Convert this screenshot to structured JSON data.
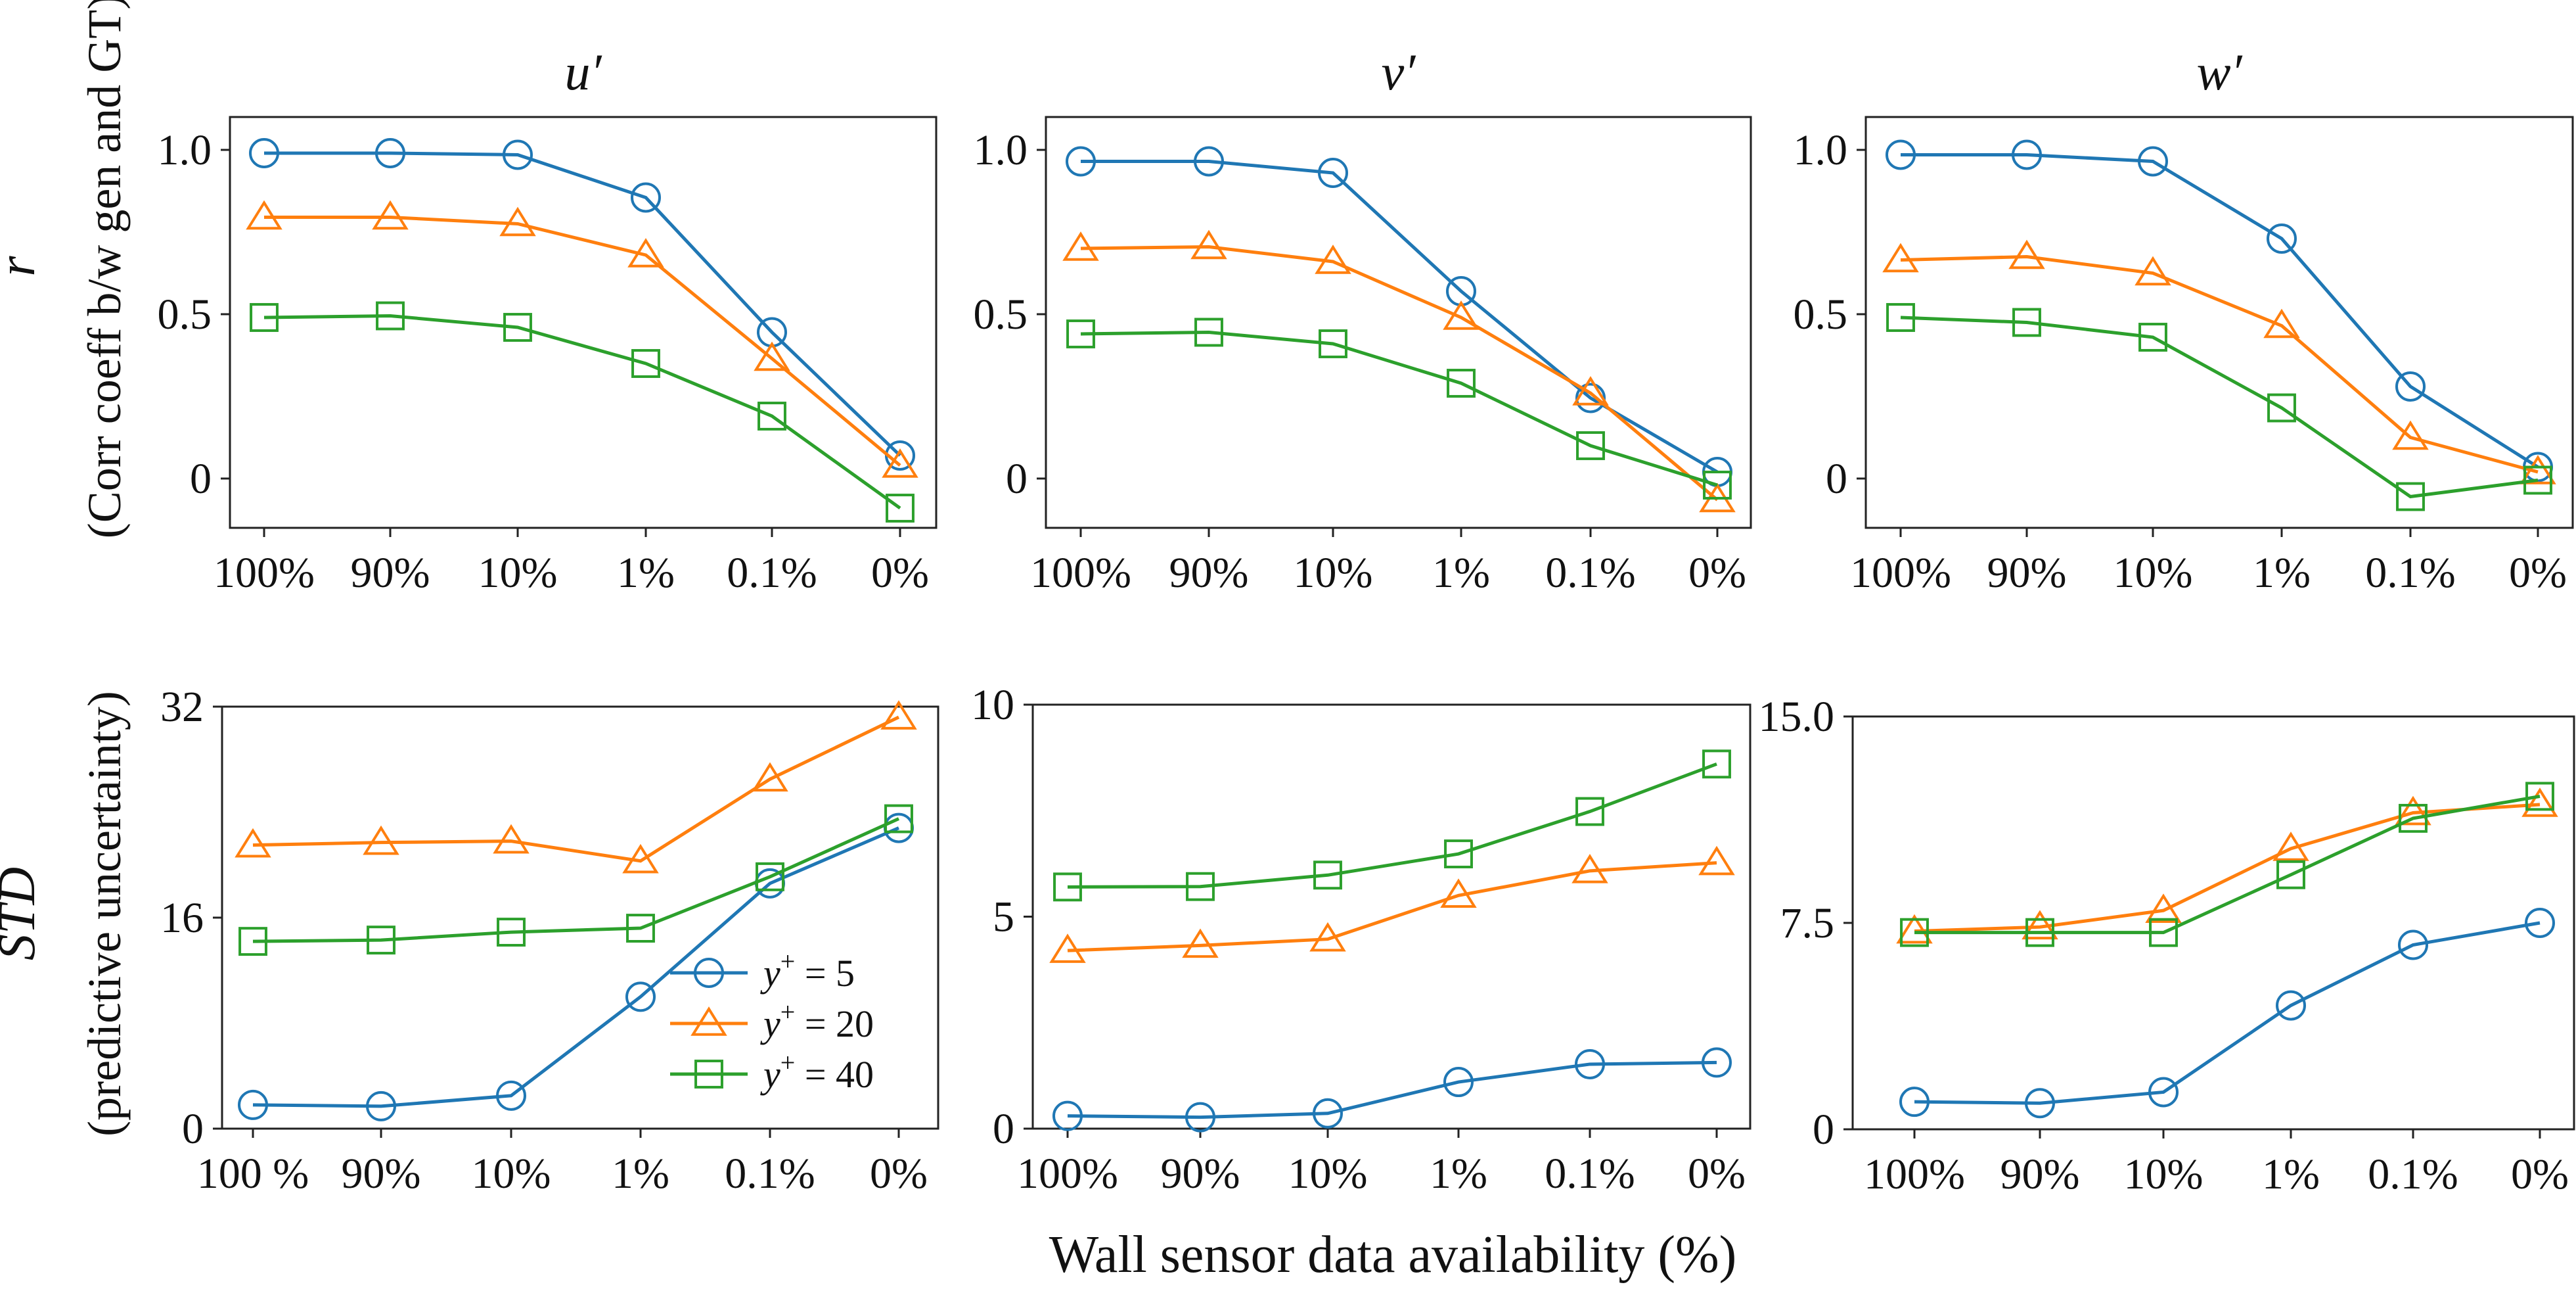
{
  "chart_data": {
    "type": "line",
    "xlabel": "Wall sensor data availability (%)",
    "row_labels": {
      "top": {
        "symbol": "r",
        "description": "(Corr coeff b/w gen and GT)"
      },
      "bottom": {
        "symbol": "STD",
        "description": "(predictive uncertainty)"
      }
    },
    "legend": {
      "placement": "lower-right of bottom-left panel",
      "entries": [
        {
          "name": "y+ = 5",
          "prefix": "y",
          "sup": "+",
          "suffix": " = 5",
          "marker": "circle",
          "color": "#1f77b4"
        },
        {
          "name": "y+ = 20",
          "prefix": "y",
          "sup": "+",
          "suffix": " = 20",
          "marker": "triangle",
          "color": "#ff7f0e"
        },
        {
          "name": "y+ = 40",
          "prefix": "y",
          "sup": "+",
          "suffix": " = 40",
          "marker": "square",
          "color": "#2ca02c"
        }
      ]
    },
    "panels": [
      {
        "id": "r-u",
        "row": "top",
        "title": "u′",
        "categories": [
          "100%",
          "90%",
          "10%",
          "1%",
          "0.1%",
          "0%"
        ],
        "ylim": [
          -0.15,
          1.1
        ],
        "yticks": [
          0,
          0.5,
          1.0
        ],
        "ytick_labels": [
          "0",
          "0.5",
          "1.0"
        ],
        "series": [
          {
            "name": "y+ = 5",
            "values": [
              0.99,
              0.99,
              0.985,
              0.855,
              0.445,
              0.07
            ]
          },
          {
            "name": "y+ = 20",
            "values": [
              0.795,
              0.795,
              0.775,
              0.68,
              0.365,
              0.04
            ]
          },
          {
            "name": "y+ = 40",
            "values": [
              0.49,
              0.495,
              0.46,
              0.35,
              0.19,
              -0.09
            ]
          }
        ]
      },
      {
        "id": "r-v",
        "row": "top",
        "title": "v′",
        "categories": [
          "100%",
          "90%",
          "10%",
          "1%",
          "0.1%",
          "0%"
        ],
        "ylim": [
          -0.15,
          1.1
        ],
        "yticks": [
          0,
          0.5,
          1.0
        ],
        "ytick_labels": [
          "0",
          "0.5",
          "1.0"
        ],
        "series": [
          {
            "name": "y+ = 5",
            "values": [
              0.965,
              0.965,
              0.93,
              0.57,
              0.245,
              0.02
            ]
          },
          {
            "name": "y+ = 20",
            "values": [
              0.7,
              0.705,
              0.66,
              0.49,
              0.26,
              -0.065
            ]
          },
          {
            "name": "y+ = 40",
            "values": [
              0.44,
              0.445,
              0.41,
              0.29,
              0.1,
              -0.02
            ]
          }
        ]
      },
      {
        "id": "r-w",
        "row": "top",
        "title": "w′",
        "categories": [
          "100%",
          "90%",
          "10%",
          "1%",
          "0.1%",
          "0%"
        ],
        "ylim": [
          -0.15,
          1.1
        ],
        "yticks": [
          0,
          0.5,
          1.0
        ],
        "ytick_labels": [
          "0",
          "0.5",
          "1.0"
        ],
        "series": [
          {
            "name": "y+ = 5",
            "values": [
              0.985,
              0.985,
              0.965,
              0.73,
              0.28,
              0.035
            ]
          },
          {
            "name": "y+ = 20",
            "values": [
              0.665,
              0.675,
              0.625,
              0.465,
              0.125,
              0.02
            ]
          },
          {
            "name": "y+ = 40",
            "values": [
              0.49,
              0.475,
              0.43,
              0.215,
              -0.055,
              -0.005
            ]
          }
        ]
      },
      {
        "id": "std-u",
        "row": "bottom",
        "title": "",
        "categories": [
          "100 %",
          "90%",
          "10%",
          "1%",
          "0.1%",
          "0%"
        ],
        "ylim": [
          0,
          32
        ],
        "yticks": [
          0,
          16,
          32
        ],
        "ytick_labels": [
          "0",
          "16",
          "32"
        ],
        "series": [
          {
            "name": "y+ = 5",
            "values": [
              1.8,
              1.7,
              2.5,
              10.0,
              18.6,
              22.8
            ]
          },
          {
            "name": "y+ = 20",
            "values": [
              21.5,
              21.7,
              21.8,
              20.3,
              26.5,
              31.2
            ]
          },
          {
            "name": "y+ = 40",
            "values": [
              14.2,
              14.3,
              14.9,
              15.2,
              19.1,
              23.5
            ]
          }
        ]
      },
      {
        "id": "std-v",
        "row": "bottom",
        "title": "",
        "categories": [
          "100%",
          "90%",
          "10%",
          "1%",
          "0.1%",
          "0%"
        ],
        "ylim": [
          0,
          10
        ],
        "yticks": [
          0,
          5,
          10
        ],
        "ytick_labels": [
          "0",
          "5",
          "10"
        ],
        "series": [
          {
            "name": "y+ = 5",
            "values": [
              0.3,
              0.27,
              0.36,
              1.1,
              1.52,
              1.56
            ]
          },
          {
            "name": "y+ = 20",
            "values": [
              4.2,
              4.32,
              4.47,
              5.5,
              6.08,
              6.27
            ]
          },
          {
            "name": "y+ = 40",
            "values": [
              5.7,
              5.71,
              5.98,
              6.48,
              7.48,
              8.6
            ]
          }
        ]
      },
      {
        "id": "std-w",
        "row": "bottom",
        "title": "",
        "categories": [
          "100%",
          "90%",
          "10%",
          "1%",
          "0.1%",
          "0%"
        ],
        "ylim": [
          0,
          15
        ],
        "yticks": [
          0,
          7.5,
          15
        ],
        "ytick_labels": [
          "0",
          "7.5",
          "15.0"
        ],
        "series": [
          {
            "name": "y+ = 5",
            "values": [
              1.0,
              0.95,
              1.35,
              4.5,
              6.7,
              7.5
            ]
          },
          {
            "name": "y+ = 20",
            "values": [
              7.2,
              7.35,
              7.95,
              10.2,
              11.5,
              11.8
            ]
          },
          {
            "name": "y+ = 40",
            "values": [
              7.15,
              7.15,
              7.15,
              9.25,
              11.3,
              12.1
            ]
          }
        ]
      }
    ]
  }
}
